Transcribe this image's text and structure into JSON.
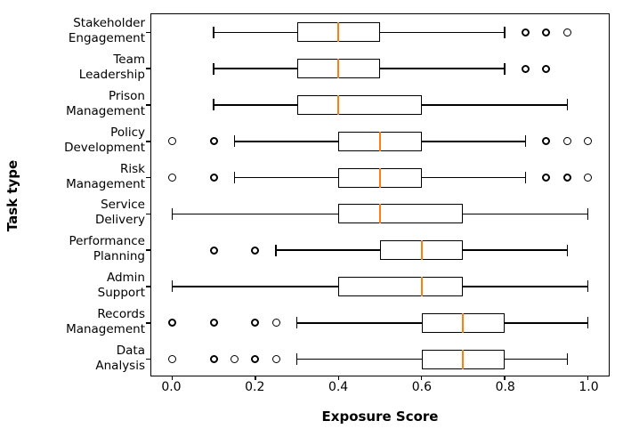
{
  "chart_data": {
    "type": "boxplot",
    "orientation": "horizontal",
    "title": "",
    "xlabel": "Exposure Score",
    "ylabel": "Task type",
    "xlim": [
      -0.05,
      1.05
    ],
    "grid": false,
    "legend": "none",
    "xticks": {
      "values": [
        0.0,
        0.2,
        0.4,
        0.6,
        0.8,
        1.0
      ],
      "labels": [
        "0.0",
        "0.2",
        "0.4",
        "0.6",
        "0.8",
        "1.0"
      ]
    },
    "colors": {
      "box_edge": "#000000",
      "whisker": "#000000",
      "median": "#ff7f0e",
      "outlier_edge": "#000000",
      "background": "#ffffff"
    },
    "boxes": [
      {
        "category": "Stakeholder Engagement",
        "label_lines": "Stakeholder\nEngagement",
        "whislo": 0.1,
        "q1": 0.3,
        "med": 0.4,
        "q3": 0.5,
        "whishi": 0.8,
        "outliers": [
          {
            "v": 0.85,
            "heavy": true
          },
          {
            "v": 0.9,
            "heavy": true
          },
          {
            "v": 0.95,
            "heavy": false
          }
        ]
      },
      {
        "category": "Team Leadership",
        "label_lines": "Team\nLeadership",
        "whislo": 0.1,
        "q1": 0.3,
        "med": 0.4,
        "q3": 0.5,
        "whishi": 0.8,
        "outliers": [
          {
            "v": 0.85,
            "heavy": true
          },
          {
            "v": 0.9,
            "heavy": true
          }
        ]
      },
      {
        "category": "Prison Management",
        "label_lines": "Prison\nManagement",
        "whislo": 0.1,
        "q1": 0.3,
        "med": 0.4,
        "q3": 0.6,
        "whishi": 0.95,
        "outliers": []
      },
      {
        "category": "Policy Development",
        "label_lines": "Policy\nDevelopment",
        "whislo": 0.15,
        "q1": 0.4,
        "med": 0.5,
        "q3": 0.6,
        "whishi": 0.85,
        "outliers": [
          {
            "v": 0.0,
            "heavy": false
          },
          {
            "v": 0.1,
            "heavy": true
          },
          {
            "v": 0.9,
            "heavy": true
          },
          {
            "v": 0.95,
            "heavy": false
          },
          {
            "v": 1.0,
            "heavy": false
          }
        ]
      },
      {
        "category": "Risk Management",
        "label_lines": "Risk\nManagement",
        "whislo": 0.15,
        "q1": 0.4,
        "med": 0.5,
        "q3": 0.6,
        "whishi": 0.85,
        "outliers": [
          {
            "v": 0.0,
            "heavy": false
          },
          {
            "v": 0.1,
            "heavy": true
          },
          {
            "v": 0.9,
            "heavy": true
          },
          {
            "v": 0.95,
            "heavy": true
          },
          {
            "v": 1.0,
            "heavy": false
          }
        ]
      },
      {
        "category": "Service Delivery",
        "label_lines": "Service\nDelivery",
        "whislo": 0.0,
        "q1": 0.4,
        "med": 0.5,
        "q3": 0.7,
        "whishi": 1.0,
        "outliers": []
      },
      {
        "category": "Performance Planning",
        "label_lines": "Performance\nPlanning",
        "whislo": 0.25,
        "q1": 0.5,
        "med": 0.6,
        "q3": 0.7,
        "whishi": 0.95,
        "outliers": [
          {
            "v": 0.1,
            "heavy": true
          },
          {
            "v": 0.2,
            "heavy": true
          }
        ]
      },
      {
        "category": "Admin Support",
        "label_lines": "Admin\nSupport",
        "whislo": 0.0,
        "q1": 0.4,
        "med": 0.6,
        "q3": 0.7,
        "whishi": 1.0,
        "outliers": []
      },
      {
        "category": "Records Management",
        "label_lines": "Records\nManagement",
        "whislo": 0.3,
        "q1": 0.6,
        "med": 0.7,
        "q3": 0.8,
        "whishi": 1.0,
        "outliers": [
          {
            "v": 0.0,
            "heavy": true
          },
          {
            "v": 0.1,
            "heavy": true
          },
          {
            "v": 0.2,
            "heavy": true
          },
          {
            "v": 0.25,
            "heavy": false
          }
        ]
      },
      {
        "category": "Data Analysis",
        "label_lines": "Data\nAnalysis",
        "whislo": 0.3,
        "q1": 0.6,
        "med": 0.7,
        "q3": 0.8,
        "whishi": 0.95,
        "outliers": [
          {
            "v": 0.0,
            "heavy": false
          },
          {
            "v": 0.1,
            "heavy": true
          },
          {
            "v": 0.15,
            "heavy": false
          },
          {
            "v": 0.2,
            "heavy": true
          },
          {
            "v": 0.25,
            "heavy": false
          }
        ]
      }
    ]
  }
}
